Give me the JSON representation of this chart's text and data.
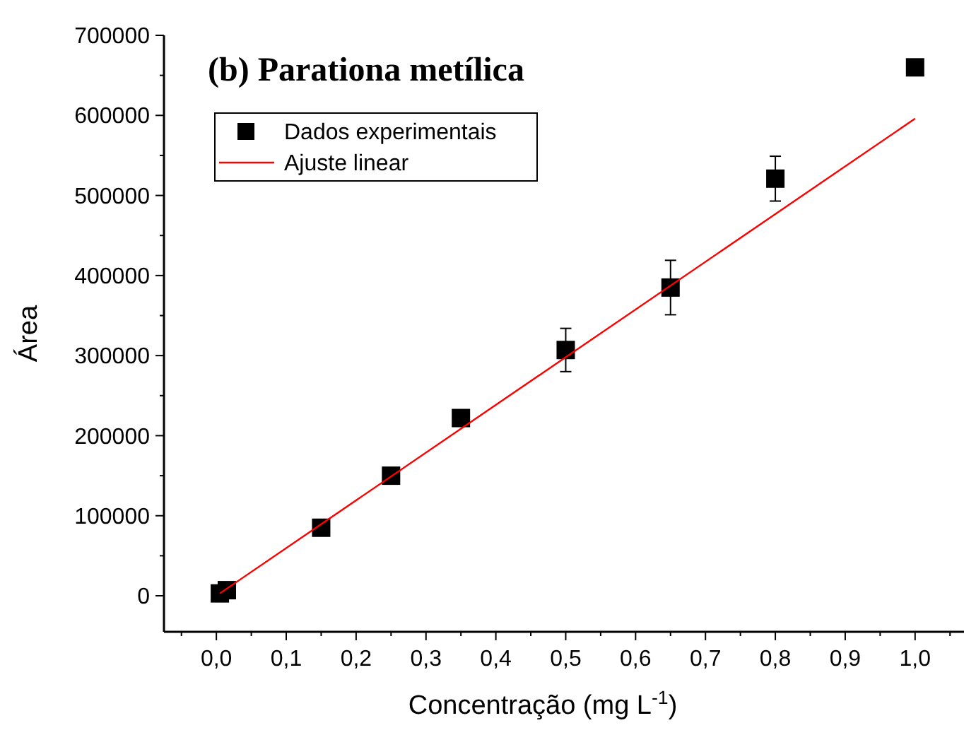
{
  "chart_data": {
    "type": "scatter",
    "title": "(b) Parationa metílica",
    "xlabel": "Concentração (mg L$^{-1}$)",
    "ylabel": "Área",
    "xlim": [
      -0.075,
      1.07
    ],
    "ylim": [
      -45000,
      700000
    ],
    "xticks": [
      {
        "value": -0.05,
        "label": null
      },
      {
        "value": 0,
        "label": "0,0"
      },
      {
        "value": 0.05,
        "label": null
      },
      {
        "value": 0.1,
        "label": "0,1"
      },
      {
        "value": 0.15,
        "label": null
      },
      {
        "value": 0.2,
        "label": "0,2"
      },
      {
        "value": 0.25,
        "label": null
      },
      {
        "value": 0.3,
        "label": "0,3"
      },
      {
        "value": 0.35,
        "label": null
      },
      {
        "value": 0.4,
        "label": "0,4"
      },
      {
        "value": 0.45,
        "label": null
      },
      {
        "value": 0.5,
        "label": "0,5"
      },
      {
        "value": 0.55,
        "label": null
      },
      {
        "value": 0.6,
        "label": "0,6"
      },
      {
        "value": 0.65,
        "label": null
      },
      {
        "value": 0.7,
        "label": "0,7"
      },
      {
        "value": 0.75,
        "label": null
      },
      {
        "value": 0.8,
        "label": "0,8"
      },
      {
        "value": 0.85,
        "label": null
      },
      {
        "value": 0.9,
        "label": "0,9"
      },
      {
        "value": 0.95,
        "label": null
      },
      {
        "value": 1,
        "label": "1,0"
      },
      {
        "value": 1.05,
        "label": null
      }
    ],
    "yticks": [
      0,
      {
        "value": 50000,
        "label": null
      },
      100000,
      {
        "value": 150000,
        "label": null
      },
      200000,
      {
        "value": 250000,
        "label": null
      },
      300000,
      {
        "value": 350000,
        "label": null
      },
      400000,
      {
        "value": 450000,
        "label": null
      },
      500000,
      {
        "value": 550000,
        "label": null
      },
      600000,
      {
        "value": 650000,
        "label": null
      },
      700000
    ],
    "legend": "top left",
    "grid": false,
    "series": [
      {
        "name": "Dados experimentais",
        "type": "scatter",
        "marker": "square",
        "color": "#000000",
        "x": [
          0.005,
          0.015,
          0.15,
          0.25,
          0.35,
          0.5,
          0.65,
          0.8,
          1.0
        ],
        "values": [
          3000,
          7000,
          85000,
          150000,
          222000,
          307000,
          385000,
          521000,
          660000
        ],
        "errors": [
          null,
          null,
          null,
          null,
          null,
          27000,
          34000,
          28000,
          null
        ]
      },
      {
        "name": "Ajuste linear",
        "type": "line",
        "marker": "none",
        "line_style": "solid",
        "color": "#ff0000",
        "x": [
          0.005,
          1.0
        ],
        "values": [
          3000,
          596000
        ]
      }
    ]
  }
}
